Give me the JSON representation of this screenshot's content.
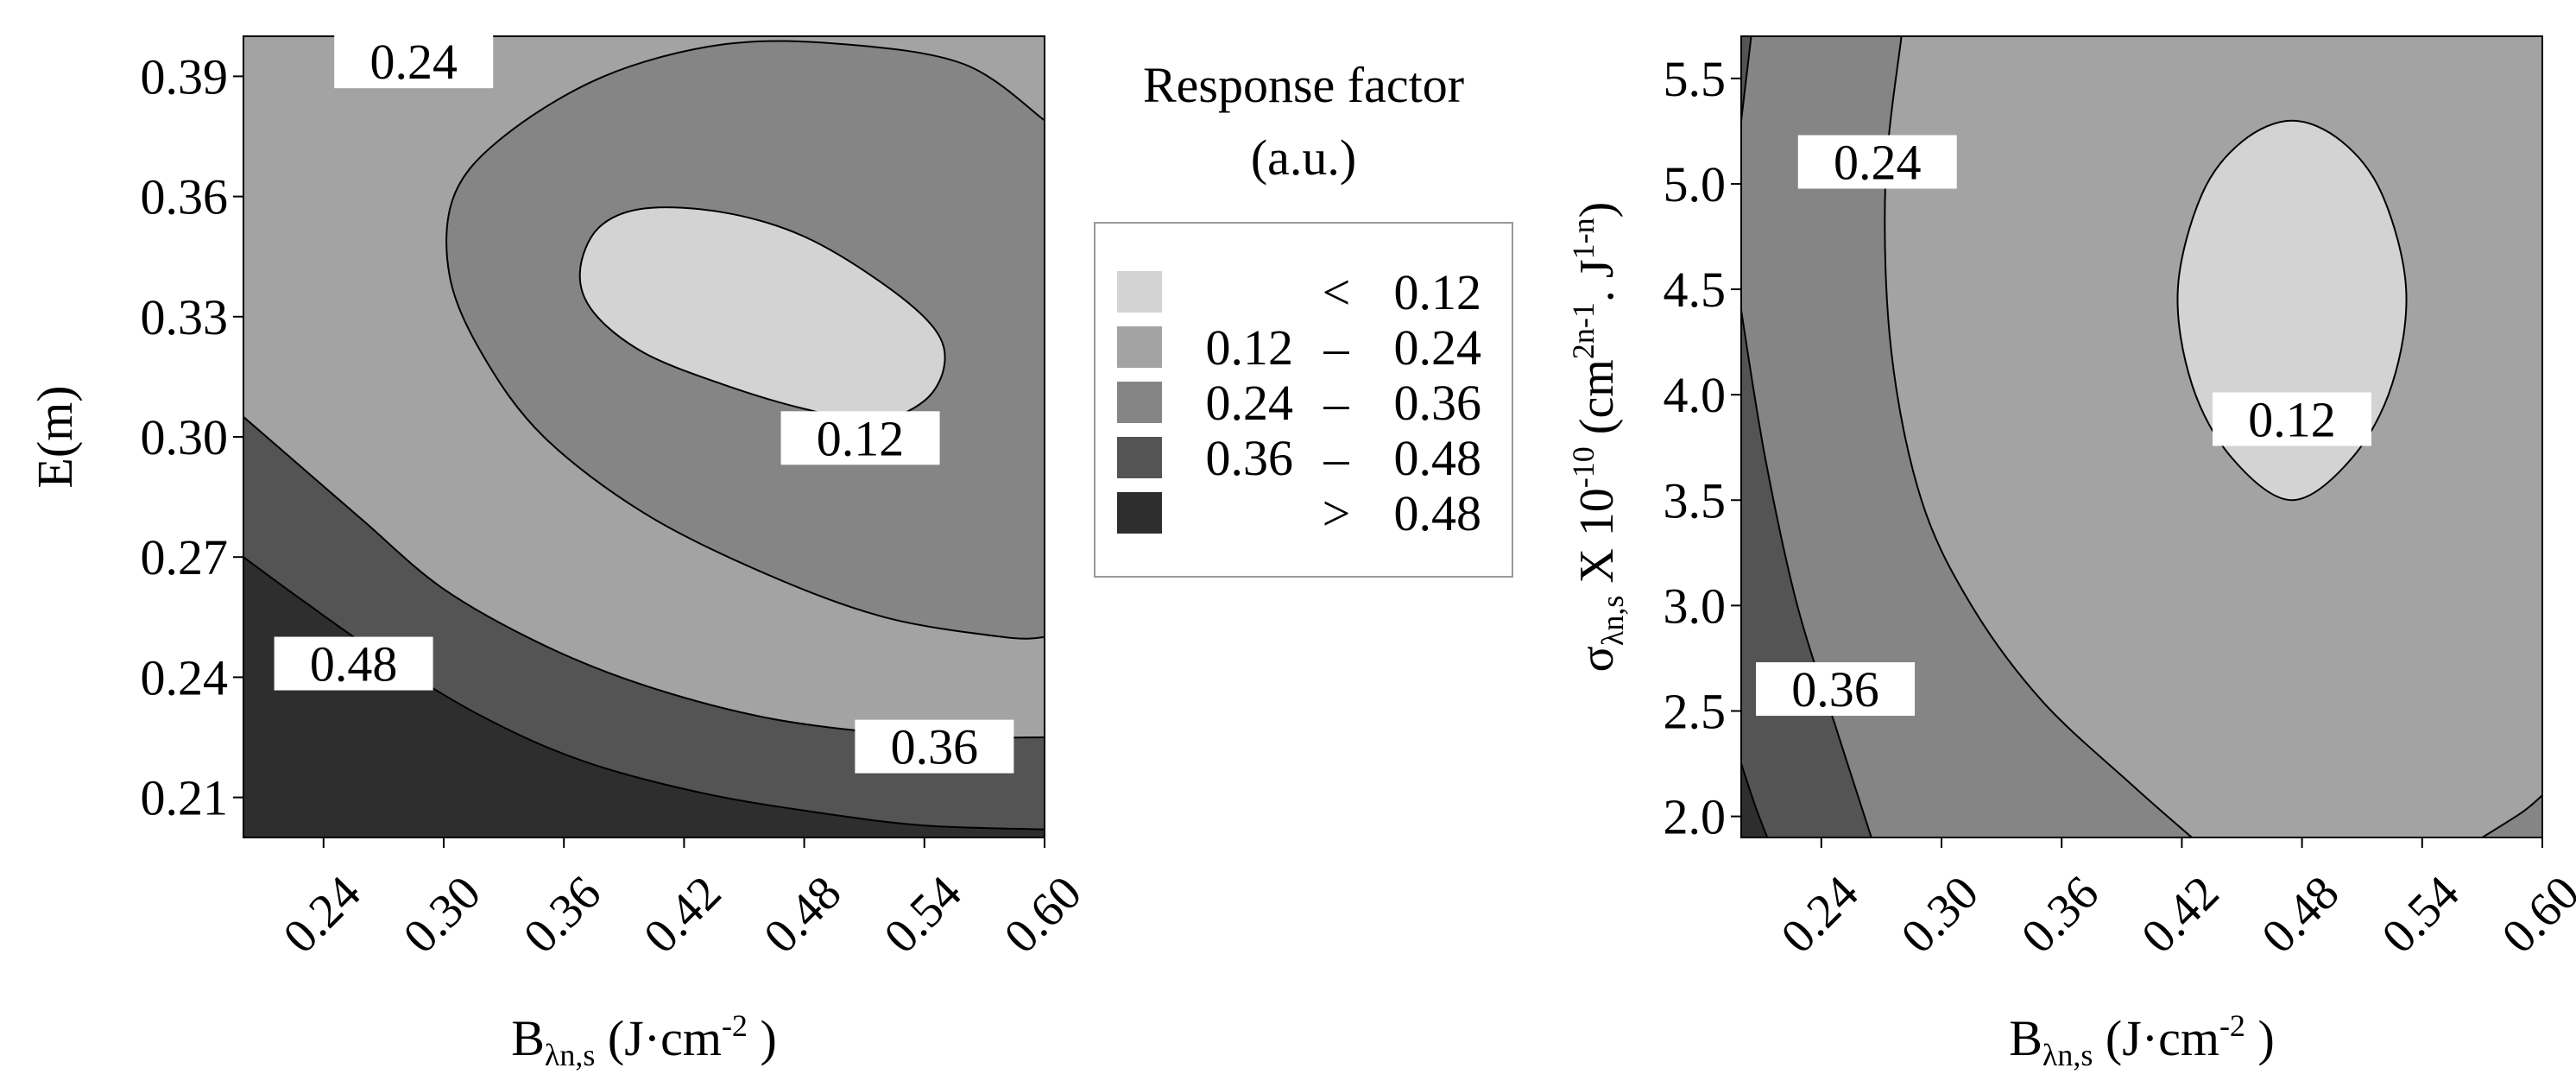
{
  "colors": {
    "band_lt_012": "#d3d3d3",
    "band_012_024": "#a3a3a3",
    "band_024_036": "#858585",
    "band_036_048": "#545454",
    "band_gt_048": "#2e2e2e",
    "contour_line": "#000000",
    "label_box": "#ffffff"
  },
  "legend": {
    "title_line1": "Response factor",
    "title_line2": "(a.u.)",
    "entries": [
      {
        "low": "",
        "sep": "<",
        "high": "0.12",
        "color": "#d3d3d3"
      },
      {
        "low": "0.12",
        "sep": "–",
        "high": "0.24",
        "color": "#a3a3a3"
      },
      {
        "low": "0.24",
        "sep": "–",
        "high": "0.36",
        "color": "#858585"
      },
      {
        "low": "0.36",
        "sep": "–",
        "high": "0.48",
        "color": "#545454"
      },
      {
        "low": "",
        "sep": ">",
        "high": "0.48",
        "color": "#2e2e2e"
      }
    ]
  },
  "chart_data": [
    {
      "type": "contour",
      "title": "",
      "xlabel_main": "B",
      "xlabel_sub": "λn,s",
      "xlabel_unit_pre": "(J·cm",
      "xlabel_unit_sup": "-2",
      "xlabel_unit_post": " )",
      "ylabel": "E(m)",
      "xlim": [
        0.2,
        0.6
      ],
      "ylim": [
        0.2,
        0.4
      ],
      "x_ticks": [
        0.24,
        0.3,
        0.36,
        0.42,
        0.48,
        0.54,
        0.6
      ],
      "x_tick_labels": [
        "0.24",
        "0.30",
        "0.36",
        "0.42",
        "0.48",
        "0.54",
        "0.60"
      ],
      "y_ticks": [
        0.21,
        0.24,
        0.27,
        0.3,
        0.33,
        0.36,
        0.39
      ],
      "y_tick_labels": [
        "0.21",
        "0.24",
        "0.27",
        "0.30",
        "0.33",
        "0.36",
        "0.39"
      ],
      "levels": [
        0.12,
        0.24,
        0.36,
        0.48
      ],
      "minimum": {
        "x": 0.47,
        "y": 0.334,
        "value": "< 0.12"
      },
      "contours": [
        {
          "level": 0.12,
          "points": [
            [
              0.368,
              0.341
            ],
            [
              0.377,
              0.352
            ],
            [
              0.4,
              0.357
            ],
            [
              0.44,
              0.356
            ],
            [
              0.48,
              0.35
            ],
            [
              0.52,
              0.338
            ],
            [
              0.545,
              0.327
            ],
            [
              0.55,
              0.318
            ],
            [
              0.54,
              0.309
            ],
            [
              0.515,
              0.304
            ],
            [
              0.48,
              0.307
            ],
            [
              0.44,
              0.313
            ],
            [
              0.4,
              0.321
            ],
            [
              0.375,
              0.331
            ]
          ],
          "closed": true
        },
        {
          "level": 0.24,
          "points": [
            [
              0.6,
              0.379
            ],
            [
              0.56,
              0.393
            ],
            [
              0.5,
              0.398
            ],
            [
              0.44,
              0.398
            ],
            [
              0.38,
              0.39
            ],
            [
              0.33,
              0.375
            ],
            [
              0.305,
              0.36
            ],
            [
              0.303,
              0.34
            ],
            [
              0.32,
              0.32
            ],
            [
              0.35,
              0.3
            ],
            [
              0.4,
              0.281
            ],
            [
              0.46,
              0.266
            ],
            [
              0.52,
              0.255
            ],
            [
              0.58,
              0.25
            ],
            [
              0.6,
              0.25
            ]
          ],
          "closed": false
        },
        {
          "level": 0.36,
          "points": [
            [
              0.2,
              0.305
            ],
            [
              0.23,
              0.292
            ],
            [
              0.26,
              0.279
            ],
            [
              0.3,
              0.262
            ],
            [
              0.35,
              0.248
            ],
            [
              0.4,
              0.238
            ],
            [
              0.46,
              0.23
            ],
            [
              0.52,
              0.226
            ],
            [
              0.56,
              0.225
            ],
            [
              0.6,
              0.225
            ]
          ],
          "closed": false
        },
        {
          "level": 0.48,
          "points": [
            [
              0.2,
              0.27
            ],
            [
              0.23,
              0.259
            ],
            [
              0.27,
              0.245
            ],
            [
              0.32,
              0.23
            ],
            [
              0.37,
              0.219
            ],
            [
              0.43,
              0.211
            ],
            [
              0.49,
              0.206
            ],
            [
              0.54,
              0.203
            ],
            [
              0.6,
              0.202
            ]
          ],
          "closed": false
        }
      ],
      "contour_labels": [
        {
          "text": "0.24",
          "x": 0.285,
          "y": 0.3935
        },
        {
          "text": "0.12",
          "x": 0.508,
          "y": 0.2995
        },
        {
          "text": "0.48",
          "x": 0.255,
          "y": 0.2432
        },
        {
          "text": "0.36",
          "x": 0.545,
          "y": 0.2225
        }
      ]
    },
    {
      "type": "contour",
      "title": "",
      "xlabel_main": "B",
      "xlabel_sub": "λn,s",
      "xlabel_unit_pre": "(J·cm",
      "xlabel_unit_sup": "-2",
      "xlabel_unit_post": " )",
      "ylabel_main": "σ",
      "ylabel_sub": "λn,s",
      "ylabel_mid": " X 10",
      "ylabel_sup1": "-10",
      "ylabel_mid2": " (cm",
      "ylabel_sup2": "2n-1",
      "ylabel_mid3": ". J",
      "ylabel_sup3": "1-n",
      "ylabel_end": ")",
      "xlim": [
        0.2,
        0.6
      ],
      "ylim": [
        1.9,
        5.7
      ],
      "x_ticks": [
        0.24,
        0.3,
        0.36,
        0.42,
        0.48,
        0.54,
        0.6
      ],
      "x_tick_labels": [
        "0.24",
        "0.30",
        "0.36",
        "0.42",
        "0.48",
        "0.54",
        "0.60"
      ],
      "y_ticks": [
        2.0,
        2.5,
        3.0,
        3.5,
        4.0,
        4.5,
        5.0,
        5.5
      ],
      "y_tick_labels": [
        "2.0",
        "2.5",
        "3.0",
        "3.5",
        "4.0",
        "4.5",
        "5.0",
        "5.5"
      ],
      "levels": [
        0.12,
        0.24,
        0.36,
        0.48
      ],
      "minimum": {
        "x": 0.475,
        "y": 4.4,
        "value": "< 0.12"
      },
      "contours": [
        {
          "level": 0.12,
          "points": [
            [
              0.475,
              5.3
            ],
            [
              0.5,
              5.2
            ],
            [
              0.52,
              4.95
            ],
            [
              0.532,
              4.5
            ],
            [
              0.525,
              4.05
            ],
            [
              0.505,
              3.7
            ],
            [
              0.475,
              3.5
            ],
            [
              0.445,
              3.7
            ],
            [
              0.425,
              4.05
            ],
            [
              0.418,
              4.5
            ],
            [
              0.43,
              4.95
            ],
            [
              0.45,
              5.2
            ]
          ],
          "closed": true
        },
        {
          "level": 0.24,
          "points": [
            [
              0.28,
              5.7
            ],
            [
              0.272,
              5.0
            ],
            [
              0.275,
              4.2
            ],
            [
              0.29,
              3.5
            ],
            [
              0.315,
              3.0
            ],
            [
              0.35,
              2.55
            ],
            [
              0.395,
              2.15
            ],
            [
              0.425,
              1.9
            ]
          ],
          "closed": false
        },
        {
          "level": 0.24,
          "points": [
            [
              0.57,
              1.9
            ],
            [
              0.59,
              2.02
            ],
            [
              0.6,
              2.1
            ]
          ],
          "closed": false
        },
        {
          "level": 0.36,
          "points": [
            [
              0.205,
              5.7
            ],
            [
              0.2,
              5.3
            ]
          ],
          "closed": false
        },
        {
          "level": 0.36,
          "points": [
            [
              0.2,
              4.4
            ],
            [
              0.212,
              3.7
            ],
            [
              0.228,
              3.0
            ],
            [
              0.248,
              2.4
            ],
            [
              0.265,
              1.9
            ]
          ],
          "closed": false
        },
        {
          "level": 0.48,
          "points": [
            [
              0.2,
              2.25
            ],
            [
              0.207,
              2.05
            ],
            [
              0.213,
              1.9
            ]
          ],
          "closed": false
        }
      ],
      "contour_labels": [
        {
          "text": "0.24",
          "x": 0.268,
          "y": 5.1
        },
        {
          "text": "0.12",
          "x": 0.475,
          "y": 3.88
        },
        {
          "text": "0.36",
          "x": 0.247,
          "y": 2.6
        }
      ]
    }
  ]
}
